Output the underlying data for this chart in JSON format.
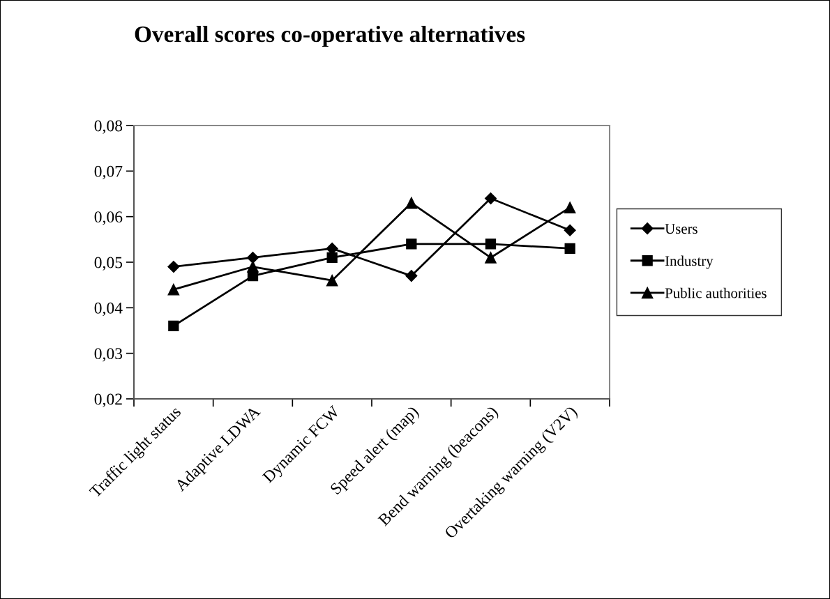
{
  "chart_data": {
    "type": "line",
    "title": "Overall scores co-operative alternatives",
    "categories": [
      "Traffic light status",
      "Adaptive LDWA",
      "Dynamic FCW",
      "Speed alert (map)",
      "Bend warning (beacons)",
      "Overtaking warning (V2V)"
    ],
    "series": [
      {
        "name": "Users",
        "color": "#000000",
        "marker": "diamond",
        "values": [
          0.049,
          0.051,
          0.053,
          0.047,
          0.064,
          0.057
        ]
      },
      {
        "name": "Industry",
        "color": "#000000",
        "marker": "square",
        "values": [
          0.036,
          0.047,
          0.051,
          0.054,
          0.054,
          0.053
        ]
      },
      {
        "name": "Public authorities",
        "color": "#000000",
        "marker": "triangle",
        "values": [
          0.044,
          0.049,
          0.046,
          0.063,
          0.051,
          0.062
        ]
      }
    ],
    "ylim": [
      0.02,
      0.08
    ],
    "yticks": [
      {
        "value": 0.02,
        "label": "0,02"
      },
      {
        "value": 0.03,
        "label": "0,03"
      },
      {
        "value": 0.04,
        "label": "0,04"
      },
      {
        "value": 0.05,
        "label": "0,05"
      },
      {
        "value": 0.06,
        "label": "0,06"
      },
      {
        "value": 0.07,
        "label": "0,07"
      },
      {
        "value": 0.08,
        "label": "0,08"
      }
    ],
    "grid": false,
    "legend": "right",
    "line_style": "solid"
  }
}
